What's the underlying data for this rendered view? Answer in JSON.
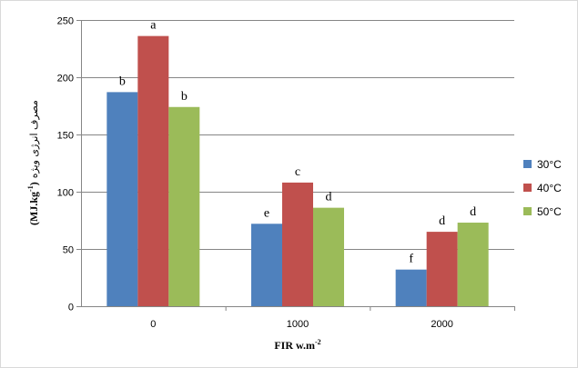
{
  "chart_data": {
    "type": "bar",
    "categories": [
      "0",
      "1000",
      "2000"
    ],
    "series": [
      {
        "name": "30°C",
        "color": "#4F81BD",
        "values": [
          187,
          72,
          32
        ],
        "labels": [
          "b",
          "e",
          "f"
        ]
      },
      {
        "name": "40°C",
        "color": "#C0504D",
        "values": [
          236,
          108,
          65
        ],
        "labels": [
          "a",
          "c",
          "d"
        ]
      },
      {
        "name": "50°C",
        "color": "#9BBB59",
        "values": [
          174,
          86,
          73
        ],
        "labels": [
          "b",
          "d",
          "d"
        ]
      }
    ],
    "ylim": [
      0,
      250
    ],
    "yticks": [
      0,
      50,
      100,
      150,
      200,
      250
    ],
    "xlabel": {
      "main": "FIR  w.m",
      "sup": "-2"
    },
    "ylabel": {
      "unit_pre": "(MJ.kg",
      "unit_sup": "-1",
      "unit_post": ")",
      "text": "مصرف انرژی ویژه"
    },
    "legend_position": "right",
    "grid": true,
    "grid_color": "#868686"
  }
}
